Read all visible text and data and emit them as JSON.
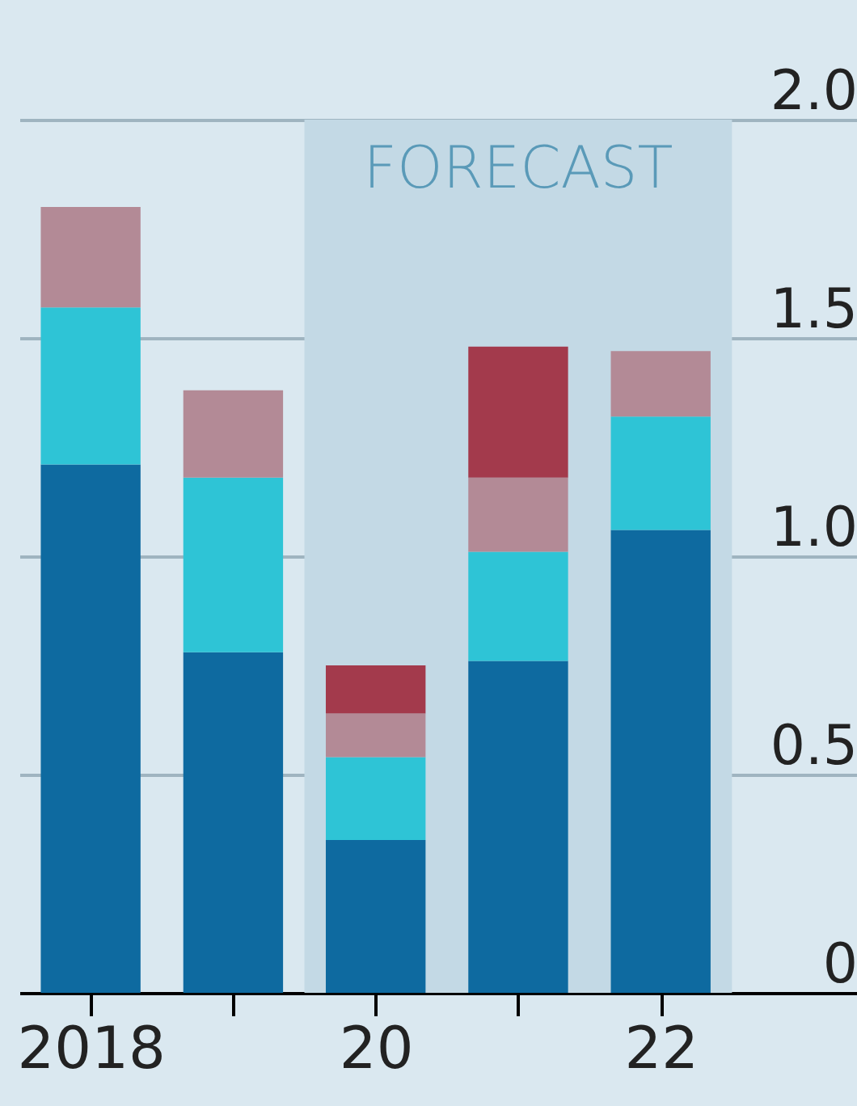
{
  "chart_data": {
    "type": "bar",
    "stacked": true,
    "categories": [
      "2018",
      null,
      "20",
      null,
      "22"
    ],
    "series": [
      {
        "color": "#0e6aa0",
        "values": [
          1.21,
          0.78,
          0.35,
          0.76,
          1.06
        ]
      },
      {
        "color": "#2ec4d6",
        "values": [
          0.36,
          0.4,
          0.19,
          0.25,
          0.26
        ]
      },
      {
        "color": "#b38a96",
        "values": [
          0.23,
          0.2,
          0.1,
          0.17,
          0.15
        ]
      },
      {
        "color": "#a33a4c",
        "values": [
          null,
          null,
          0.11,
          0.3,
          null
        ]
      }
    ],
    "ylim": [
      0,
      2
    ],
    "yticks": [
      0,
      {
        "value": 0.5,
        "label": "0.5"
      },
      {
        "value": 1,
        "label": "1.0"
      },
      {
        "value": 1.5,
        "label": "1.5"
      },
      {
        "value": 2,
        "label": "2.0"
      }
    ],
    "grid": "y",
    "bands": [
      {
        "axis": "x",
        "from": "20",
        "to": "22",
        "label": "FORECAST",
        "color": "#c3d9e5"
      }
    ]
  }
}
